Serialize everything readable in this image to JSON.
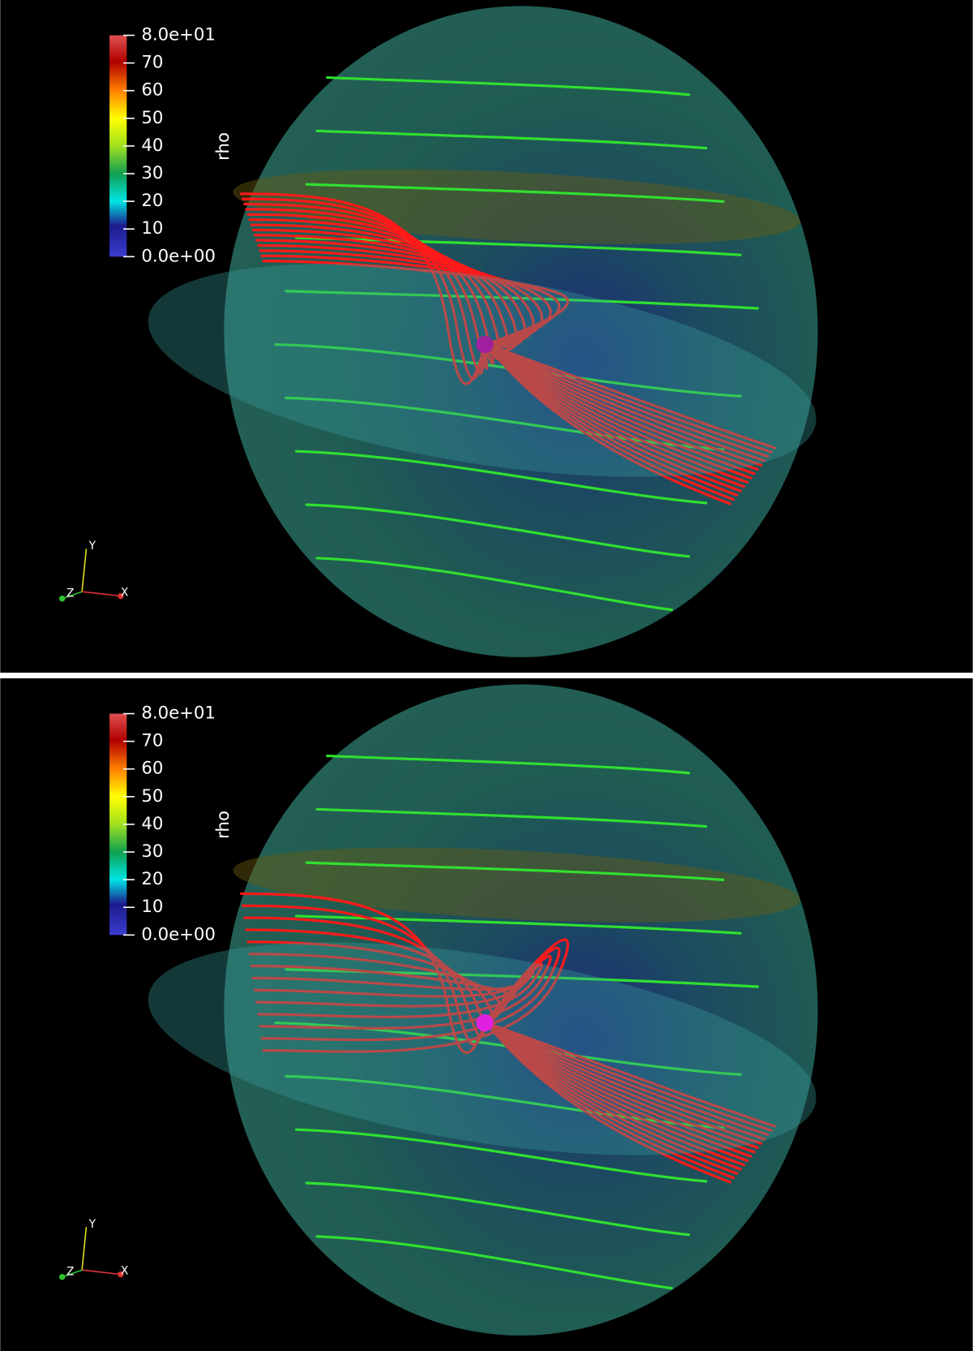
{
  "panels": [
    {
      "colorbar": {
        "title": "rho",
        "labels": [
          "8.0e+01",
          "70",
          "60",
          "50",
          "40",
          "30",
          "20",
          "10",
          "0.0e+00"
        ]
      },
      "axes": {
        "x": "X",
        "y": "Y",
        "z": "Z"
      }
    },
    {
      "colorbar": {
        "title": "rho",
        "labels": [
          "8.0e+01",
          "70",
          "60",
          "50",
          "40",
          "30",
          "20",
          "10",
          "0.0e+00"
        ]
      },
      "axes": {
        "x": "X",
        "y": "Y",
        "z": "Z"
      }
    }
  ]
}
